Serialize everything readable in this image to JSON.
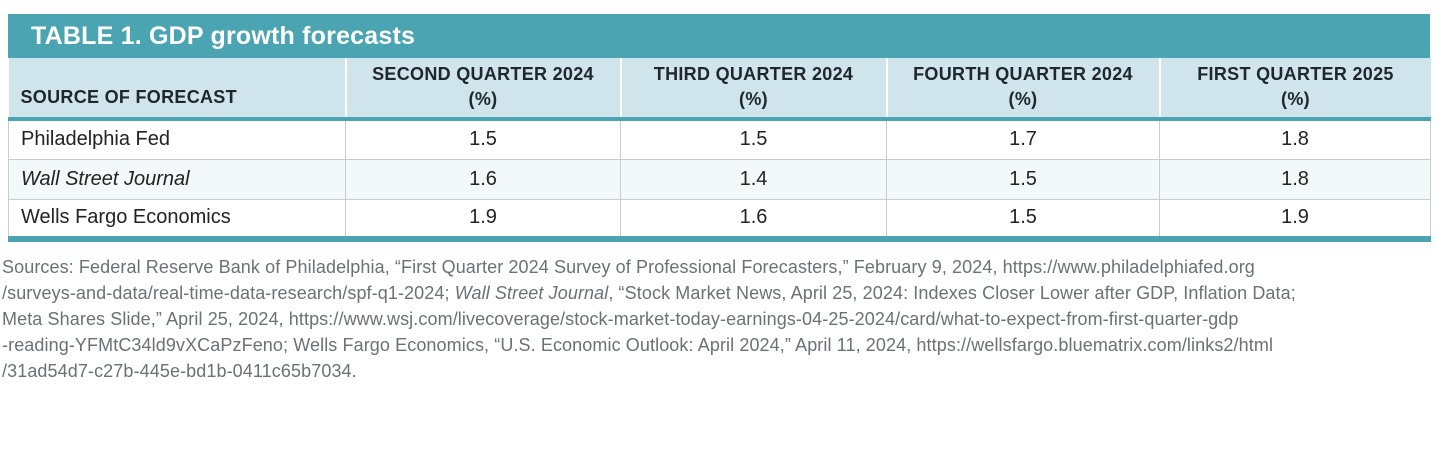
{
  "accent_color": "#4BA4B1",
  "header_bg_color": "#CFE5EB",
  "alt_row_color": "#F3F8F8",
  "table": {
    "title": "TABLE 1. GDP growth forecasts",
    "row_header": "SOURCE OF FORECAST",
    "quarter_columns": [
      {
        "label": "SECOND QUARTER 2024",
        "unit": "(%)"
      },
      {
        "label": "THIRD QUARTER 2024",
        "unit": "(%)"
      },
      {
        "label": "FOURTH QUARTER 2024",
        "unit": "(%)"
      },
      {
        "label": "FIRST QUARTER 2025",
        "unit": "(%)"
      }
    ],
    "rows": [
      {
        "source": "Philadelphia Fed",
        "italic": false,
        "values": [
          "1.5",
          "1.5",
          "1.7",
          "1.8"
        ]
      },
      {
        "source": "Wall Street Journal",
        "italic": true,
        "values": [
          "1.6",
          "1.4",
          "1.5",
          "1.8"
        ]
      },
      {
        "source": "Wells Fargo Economics",
        "italic": false,
        "values": [
          "1.9",
          "1.6",
          "1.5",
          "1.9"
        ]
      }
    ]
  },
  "sources_note": {
    "lines": [
      [
        {
          "t": "Sources: Federal Reserve Bank of Philadelphia, “First Quarter 2024 Survey of Professional Forecasters,” February 9, 2024, https://www.philadelphiafed.org",
          "i": false
        }
      ],
      [
        {
          "t": "/surveys-and-data/real-time-data-research/spf-q1-2024; ",
          "i": false
        },
        {
          "t": "Wall Street Journal",
          "i": true
        },
        {
          "t": ", “Stock Market News, April 25, 2024: Indexes Closer Lower after GDP, Inflation Data;",
          "i": false
        }
      ],
      [
        {
          "t": "Meta Shares Slide,” April 25, 2024, https://www.wsj.com/livecoverage/stock-market-today-earnings-04-25-2024/card/what-to-expect-from-first-quarter-gdp",
          "i": false
        }
      ],
      [
        {
          "t": "-reading-YFMtC34ld9vXCaPzFeno; Wells Fargo Economics, “U.S. Economic Outlook: April 2024,” April 11, 2024, https://wellsfargo.bluematrix.com/links2/html",
          "i": false
        }
      ],
      [
        {
          "t": "/31ad54d7-c27b-445e-bd1b-0411c65b7034.",
          "i": false
        }
      ]
    ]
  }
}
